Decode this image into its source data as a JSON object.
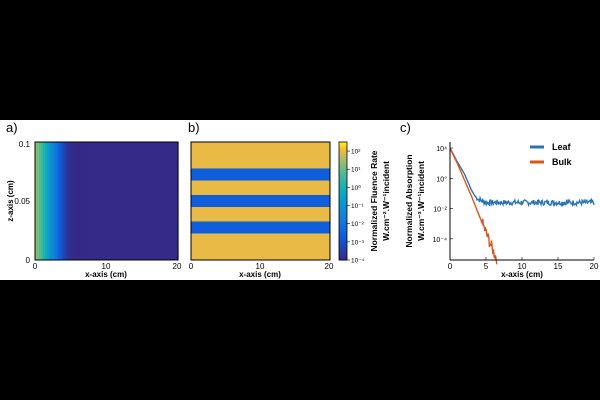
{
  "panels": [
    {
      "letter": "a)",
      "type": "heatmap",
      "title": "",
      "xlabel": "x-axis (cm)",
      "ylabel": "z-axis (cm)",
      "xticks": [
        "0",
        "10",
        "20"
      ],
      "yticks": [
        "0",
        "0.05",
        "0.1"
      ],
      "xlim": [
        0,
        20
      ],
      "ylim": [
        0,
        0.1
      ]
    },
    {
      "letter": "b)",
      "type": "heatmap",
      "xlabel": "x-axis (cm)",
      "xticks": [
        "0",
        "10",
        "20"
      ],
      "xlim": [
        0,
        20
      ],
      "colorbar": {
        "label_line1": "Normalized Fluence Rate",
        "label_line2": "W.cm⁻².W⁻¹incident",
        "ticks": [
          "10²",
          "10¹",
          "10⁰",
          "10⁻¹",
          "10⁻²",
          "10⁻³",
          "10⁻⁴"
        ],
        "range": [
          -4,
          2.5
        ],
        "scale": "log"
      }
    },
    {
      "letter": "c)",
      "type": "line",
      "xlabel": "x-axis (cm)",
      "ylabel_line1": "Normalized Absorption",
      "ylabel_line2": "W.cm⁻³.W⁻¹incident",
      "xticks": [
        "0",
        "5",
        "10",
        "15",
        "20"
      ],
      "yticks": [
        "10⁴",
        "10°",
        "10⁻²",
        "10⁻⁴"
      ],
      "xlim": [
        0,
        20
      ],
      "ylim_log10": [
        -5.4,
        2.4
      ]
    }
  ],
  "chart_data": [
    {
      "type": "heatmap",
      "panel": "a",
      "description": "Fluence rate decays from left edge; high near x=0, uniform low beyond x~5 cm",
      "x_range": [
        0,
        20
      ],
      "z_range": [
        0,
        0.1
      ],
      "profile_log10_at_x": {
        "x": [
          0,
          1,
          2,
          3,
          4,
          5,
          20
        ],
        "v": [
          1.5,
          0.5,
          -0.8,
          -2.0,
          -3.3,
          -4.0,
          -4.0
        ]
      }
    },
    {
      "type": "heatmap",
      "panel": "b",
      "description": "Alternating high/low horizontal bands across full x range",
      "x_range": [
        0,
        20
      ],
      "bands_log10": [
        2.0,
        -2.6,
        2.0,
        -2.6,
        2.0,
        -2.6,
        2.0
      ]
    },
    {
      "type": "line",
      "panel": "c",
      "series": [
        {
          "name": "Leaf",
          "color": "#2a73b6",
          "x": [
            0,
            1,
            2,
            3,
            3.5,
            4,
            5,
            6,
            8,
            10,
            12,
            14,
            16,
            18,
            20
          ],
          "log10_y": [
            2.0,
            1.1,
            0.3,
            -0.8,
            -1.2,
            -1.4,
            -1.6,
            -1.6,
            -1.6,
            -1.6,
            -1.6,
            -1.6,
            -1.6,
            -1.6,
            -1.6
          ]
        },
        {
          "name": "Bulk",
          "color": "#d9541e",
          "x": [
            0,
            1,
            2,
            3,
            4,
            5,
            5.5,
            6,
            6.5
          ],
          "log10_y": [
            2.0,
            1.0,
            -0.1,
            -1.2,
            -2.4,
            -3.6,
            -4.2,
            -4.8,
            -5.3
          ]
        }
      ],
      "legend": "top-right"
    }
  ]
}
